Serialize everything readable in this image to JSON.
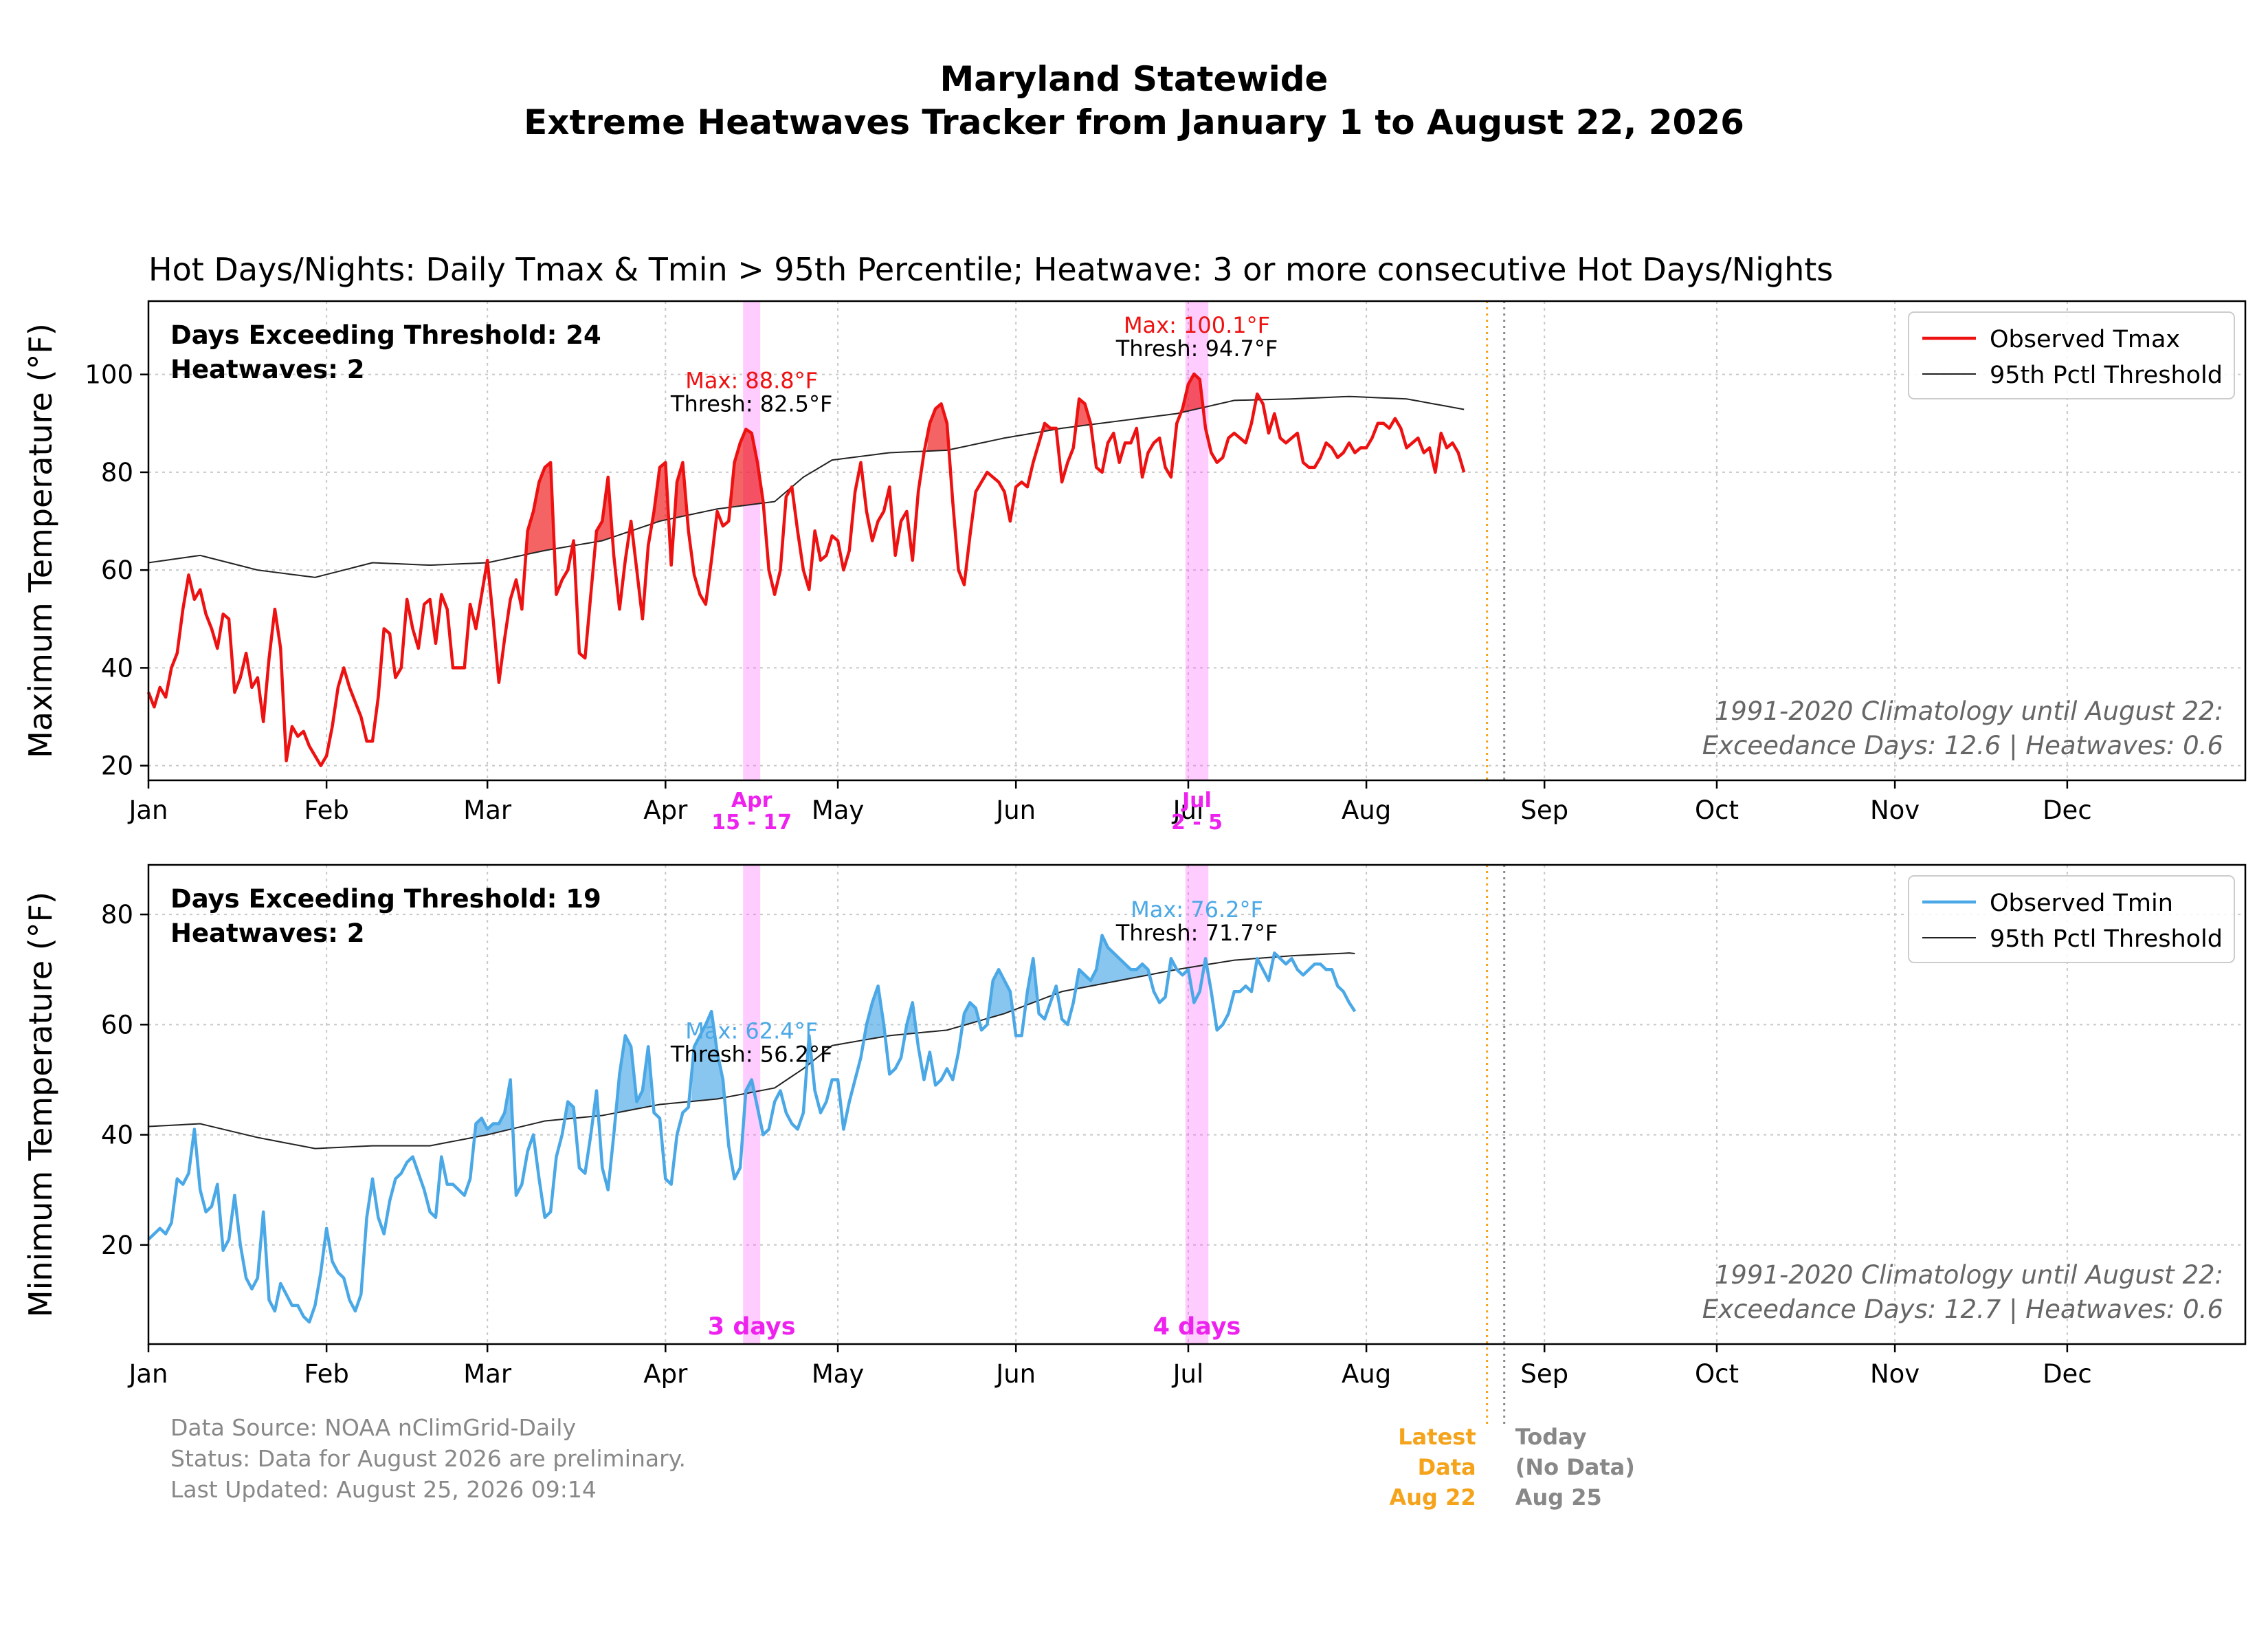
{
  "title_line1": "Maryland Statewide",
  "title_line2": "Extreme Heatwaves Tracker from January 1 to August 22, 2026",
  "colors": {
    "tmax": "#ee1111",
    "tmin": "#4aa8e6",
    "threshold": "#222222",
    "heatwave_band": "#ff55ff",
    "latest_data": "#f5a31a",
    "today": "#888888"
  },
  "month_labels": [
    "Jan",
    "Feb",
    "Mar",
    "Apr",
    "May",
    "Jun",
    "Jul",
    "Aug",
    "Sep",
    "Oct",
    "Nov",
    "Dec"
  ],
  "chart_data": [
    {
      "type": "line",
      "subtitle": "Hot Days/Nights: Daily Tmax & Tmin > 95th Percentile; Heatwave: 3 or more consecutive Hot Days/Nights",
      "ylabel": "Maximum Temperature (°F)",
      "ylim": [
        17,
        115
      ],
      "yticks": [
        20,
        40,
        60,
        80,
        100
      ],
      "grid": true,
      "legend_position": "top-right",
      "legend": [
        "Observed Tmax",
        "95th Pctl Threshold"
      ],
      "stats": [
        "Days Exceeding Threshold: 24",
        "Heatwaves: 2"
      ],
      "climatology": [
        "1991-2020 Climatology until August 22:",
        "Exceedance Days: 12.6 | Heatwaves: 0.6"
      ],
      "x_start_date": "2026-01-01",
      "x_end_date": "2026-08-22",
      "threshold_knots": [
        [
          1,
          61.5
        ],
        [
          10,
          63
        ],
        [
          20,
          60
        ],
        [
          30,
          58.5
        ],
        [
          40,
          61.5
        ],
        [
          50,
          61
        ],
        [
          60,
          61.5
        ],
        [
          70,
          64
        ],
        [
          80,
          66
        ],
        [
          90,
          70
        ],
        [
          100,
          72.5
        ],
        [
          110,
          74
        ],
        [
          115,
          79
        ],
        [
          120,
          82.5
        ],
        [
          130,
          84
        ],
        [
          140,
          84.5
        ],
        [
          150,
          87
        ],
        [
          160,
          89
        ],
        [
          170,
          90.5
        ],
        [
          180,
          92
        ],
        [
          190,
          94.7
        ],
        [
          200,
          95
        ],
        [
          210,
          95.5
        ],
        [
          220,
          95
        ],
        [
          234,
          92
        ]
      ],
      "tmax": [
        35,
        32,
        36,
        34,
        40,
        43,
        52,
        59,
        54,
        56,
        51,
        48,
        44,
        51,
        50,
        35,
        38,
        43,
        36,
        38,
        29,
        42,
        52,
        44,
        21,
        28,
        26,
        27,
        24,
        22,
        20,
        22,
        28,
        36,
        40,
        36,
        33,
        30,
        25,
        25,
        34,
        48,
        47,
        38,
        40,
        54,
        48,
        44,
        53,
        54,
        45,
        55,
        52,
        40,
        40,
        40,
        53,
        48,
        55,
        62,
        50,
        37,
        46,
        54,
        58,
        52,
        68,
        72,
        78,
        81,
        82,
        55,
        58,
        60,
        66,
        43,
        42,
        55,
        68,
        70,
        79,
        63,
        52,
        62,
        70,
        60,
        50,
        65,
        72,
        81,
        82,
        61,
        78,
        82,
        68,
        59,
        55,
        53,
        62,
        72,
        69,
        70,
        82,
        86,
        88.8,
        88,
        82,
        74,
        60,
        55,
        60,
        75,
        77,
        68,
        60,
        56,
        68,
        62,
        63,
        67,
        66,
        60,
        64,
        76,
        82,
        72,
        66,
        70,
        72,
        77,
        63,
        70,
        72,
        62,
        76,
        84,
        90,
        93,
        94,
        90,
        74,
        60,
        57,
        67,
        76,
        78,
        80,
        79,
        78,
        76,
        70,
        77,
        78,
        77,
        82,
        86,
        90,
        89,
        89,
        78,
        82,
        85,
        95,
        94,
        90,
        81,
        80,
        86,
        88,
        82,
        86,
        86,
        89,
        79,
        84,
        86,
        87,
        81,
        79,
        90,
        93,
        98,
        100.1,
        99,
        89,
        84,
        82,
        83,
        87,
        88,
        87,
        86,
        90,
        96,
        94,
        88,
        92,
        87,
        86,
        87,
        88,
        82,
        81,
        81,
        83,
        86,
        85,
        83,
        84,
        86,
        84,
        85,
        85,
        87,
        90,
        90,
        89,
        91,
        89,
        85,
        86,
        87,
        84,
        85,
        80,
        88,
        85,
        86,
        84,
        80
      ]
    },
    {
      "type": "line",
      "ylabel": "Minimum Temperature (°F)",
      "ylim": [
        2,
        89
      ],
      "yticks": [
        20,
        40,
        60,
        80
      ],
      "grid": true,
      "legend_position": "top-right",
      "legend": [
        "Observed Tmin",
        "95th Pctl Threshold"
      ],
      "stats": [
        "Days Exceeding Threshold: 19",
        "Heatwaves: 2"
      ],
      "climatology": [
        "1991-2020 Climatology until August 22:",
        "Exceedance Days: 12.7 | Heatwaves: 0.6"
      ],
      "x_start_date": "2026-01-01",
      "x_end_date": "2026-08-22",
      "threshold_knots": [
        [
          1,
          41.5
        ],
        [
          10,
          42
        ],
        [
          20,
          39.5
        ],
        [
          30,
          37.5
        ],
        [
          40,
          38
        ],
        [
          50,
          38
        ],
        [
          60,
          40
        ],
        [
          70,
          42.5
        ],
        [
          80,
          43.5
        ],
        [
          90,
          45.5
        ],
        [
          100,
          46.5
        ],
        [
          110,
          48.5
        ],
        [
          115,
          52
        ],
        [
          120,
          56.2
        ],
        [
          130,
          58
        ],
        [
          140,
          59
        ],
        [
          150,
          62
        ],
        [
          160,
          66
        ],
        [
          170,
          68
        ],
        [
          180,
          70
        ],
        [
          190,
          71.7
        ],
        [
          200,
          72.5
        ],
        [
          210,
          73
        ],
        [
          220,
          72
        ],
        [
          234,
          70.5
        ]
      ],
      "tmin": [
        21,
        22,
        23,
        22,
        24,
        32,
        31,
        33,
        41,
        30,
        26,
        27,
        31,
        19,
        21,
        29,
        20,
        14,
        12,
        14,
        26,
        10,
        8,
        13,
        11,
        9,
        9,
        7,
        6,
        9,
        15,
        23,
        17,
        15,
        14,
        10,
        8,
        11,
        25,
        32,
        25,
        22,
        28,
        32,
        33,
        35,
        36,
        33,
        30,
        26,
        25,
        36,
        31,
        31,
        30,
        29,
        32,
        42,
        43,
        41,
        42,
        42,
        44,
        50,
        29,
        31,
        37,
        40,
        32,
        25,
        26,
        36,
        40,
        46,
        45,
        34,
        33,
        40,
        48,
        34,
        30,
        40,
        51,
        58,
        56,
        46,
        48,
        56,
        44,
        43,
        32,
        31,
        40,
        44,
        45,
        56,
        58,
        60,
        62.4,
        55,
        50,
        38,
        32,
        34,
        48,
        50,
        45,
        40,
        41,
        46,
        48,
        44,
        42,
        41,
        44,
        58,
        48,
        44,
        46,
        50,
        50,
        41,
        46,
        50,
        54,
        60,
        64,
        67,
        60,
        51,
        52,
        54,
        60,
        64,
        56,
        50,
        55,
        49,
        50,
        52,
        50,
        55,
        62,
        64,
        63,
        59,
        60,
        68,
        70,
        68,
        66,
        58,
        58,
        66,
        72,
        62,
        61,
        64,
        67,
        61,
        60,
        64,
        70,
        69,
        68,
        70,
        76.2,
        74,
        73,
        72,
        71,
        70,
        70,
        71,
        70,
        66,
        64,
        65,
        72,
        70,
        69,
        70,
        64,
        66,
        72,
        66,
        59,
        60,
        62,
        66,
        66,
        67,
        66,
        72,
        70,
        68,
        73,
        72,
        71,
        72,
        70,
        69,
        70,
        71,
        71,
        70,
        70,
        67,
        66,
        64,
        62.4
      ]
    }
  ],
  "heatwave_events": [
    {
      "start_day": 105,
      "end_day": 107,
      "tick_month": "Apr",
      "tick_range": "15 - 17",
      "duration": "3 days",
      "tmax_label": "Max: 88.8°F",
      "tmax_thresh": "Thresh: 82.5°F",
      "tmin_label": "Max: 62.4°F",
      "tmin_thresh": "Thresh: 56.2°F"
    },
    {
      "start_day": 182,
      "end_day": 185,
      "tick_month": "Jul",
      "tick_range": "2 - 5",
      "duration": "4 days",
      "tmax_label": "Max: 100.1°F",
      "tmax_thresh": "Thresh: 94.7°F",
      "tmin_label": "Max: 76.2°F",
      "tmin_thresh": "Thresh: 71.7°F"
    }
  ],
  "markers": {
    "latest_date": "2026-08-22",
    "latest_label": [
      "Latest",
      "Data",
      "Aug 22"
    ],
    "today_date": "2026-08-25",
    "today_label": [
      "Today",
      "(No Data)",
      "Aug 25"
    ]
  },
  "footer": [
    "Data Source: NOAA nClimGrid-Daily",
    "Status: Data for August 2026 are preliminary.",
    "Last Updated: August 25, 2026 09:14"
  ]
}
